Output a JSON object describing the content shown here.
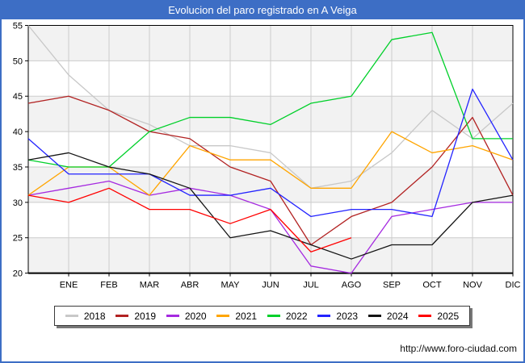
{
  "window": {
    "title": "Evolucion del paro registrado en A Veiga",
    "footer_url": "http://www.foro-ciudad.com",
    "titlebar_color": "#3d6ec5"
  },
  "chart_data": {
    "type": "line",
    "title": "Evolucion del paro registrado en A Veiga",
    "x_tick_labels": [
      "ENE",
      "FEB",
      "MAR",
      "ABR",
      "MAY",
      "JUN",
      "JUL",
      "AGO",
      "SEP",
      "OCT",
      "NOV",
      "DIC"
    ],
    "note": "Registered unemployment by month. Each series has up to 13 points: index 0 lies on the left axis (start value before ENE); indexes 1-12 align with the ENE-DIC gridlines. The 2025 series ends at AGO.",
    "ylim": [
      20,
      55
    ],
    "y_ticks": [
      20,
      25,
      30,
      35,
      40,
      45,
      50,
      55
    ],
    "grid": true,
    "legend_position": "bottom",
    "series": [
      {
        "name": "2018",
        "color": "#c8c8c8",
        "values": [
          55,
          48,
          43,
          41,
          38,
          38,
          37,
          32,
          33,
          37,
          43,
          39,
          44
        ]
      },
      {
        "name": "2019",
        "color": "#b22222",
        "values": [
          44,
          45,
          43,
          40,
          39,
          35,
          33,
          24,
          28,
          30,
          35,
          42,
          31
        ]
      },
      {
        "name": "2020",
        "color": "#a52ae0",
        "values": [
          31,
          32,
          33,
          31,
          32,
          31,
          29,
          21,
          20,
          28,
          29,
          30,
          30
        ]
      },
      {
        "name": "2021",
        "color": "#ffa500",
        "values": [
          31,
          35,
          35,
          31,
          38,
          36,
          36,
          32,
          32,
          40,
          37,
          38,
          36
        ]
      },
      {
        "name": "2022",
        "color": "#00d02a",
        "values": [
          36,
          35,
          35,
          40,
          42,
          42,
          41,
          44,
          45,
          53,
          54,
          39,
          39
        ]
      },
      {
        "name": "2023",
        "color": "#2323ff",
        "values": [
          39,
          34,
          34,
          34,
          31,
          31,
          32,
          28,
          29,
          29,
          28,
          46,
          36
        ]
      },
      {
        "name": "2024",
        "color": "#141414",
        "values": [
          36,
          37,
          35,
          34,
          32,
          25,
          26,
          24,
          22,
          24,
          24,
          30,
          31
        ]
      },
      {
        "name": "2025",
        "color": "#ff0000",
        "values": [
          31,
          30,
          32,
          29,
          29,
          27,
          29,
          23,
          25,
          null,
          null,
          null,
          null
        ]
      }
    ]
  }
}
